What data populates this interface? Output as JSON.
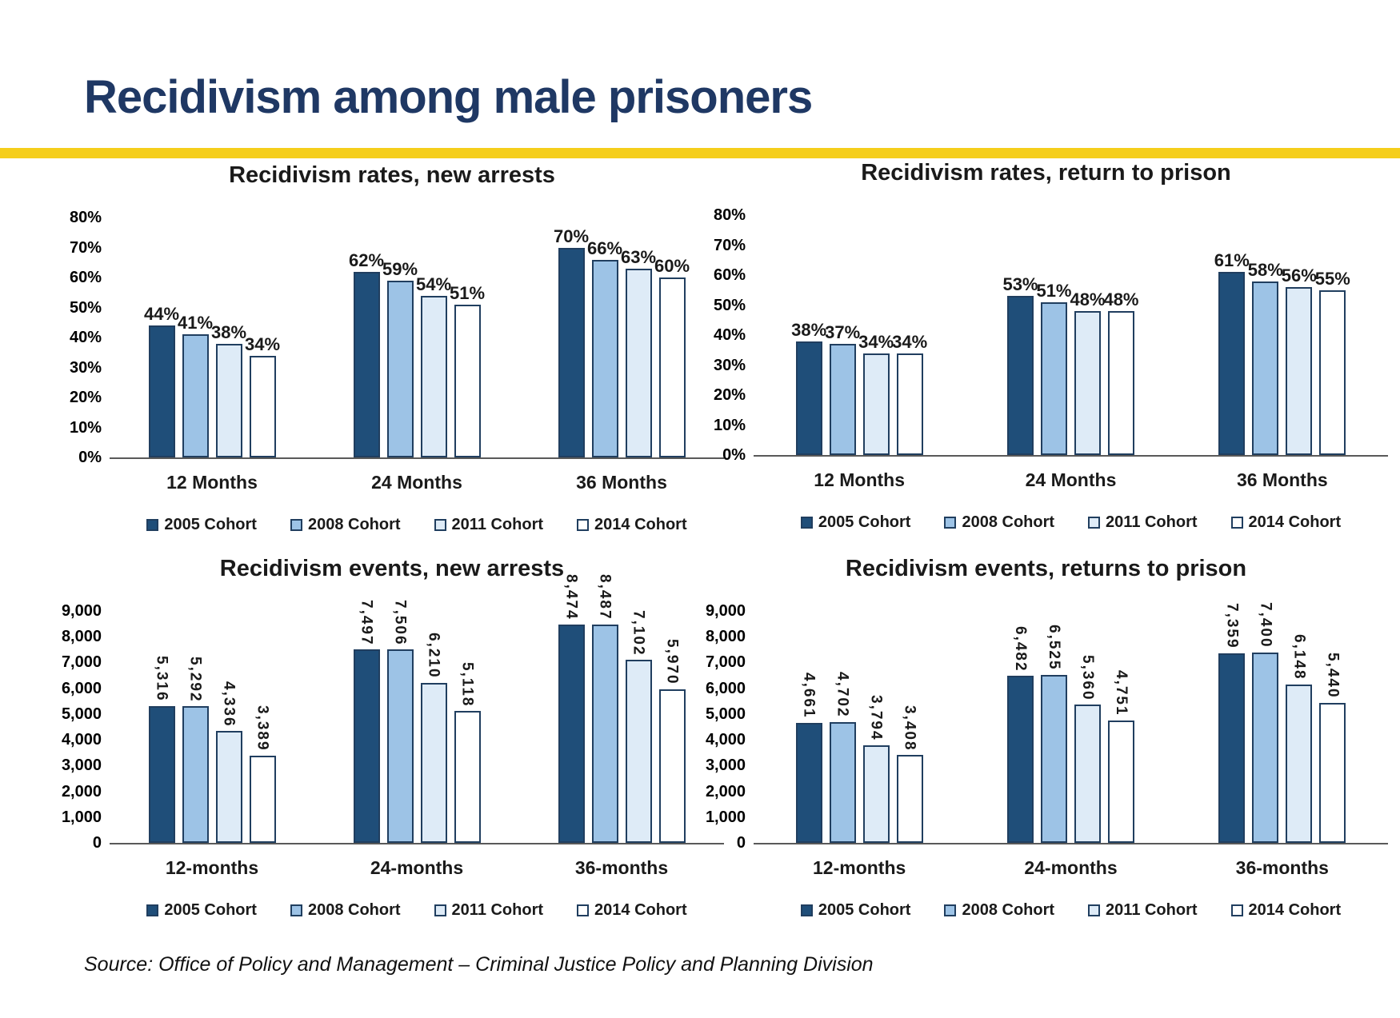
{
  "page": {
    "title": "Recidivism among male prisoners",
    "source": "Source: Office of Policy and Management – Criminal Justice Policy and Planning Division"
  },
  "style": {
    "accent_yellow": "#F5CE1B",
    "title_color": "#1F3864",
    "series_colors": [
      "#1F4E79",
      "#9DC3E6",
      "#DEEBF7",
      "#FFFFFF"
    ],
    "bar_border": "#203E5F",
    "axis_color": "#595959"
  },
  "legend_labels": [
    "2005 Cohort",
    "2008 Cohort",
    "2011 Cohort",
    "2014 Cohort"
  ],
  "chart_data": [
    {
      "id": "rates-new-arrests",
      "type": "bar",
      "title": "Recidivism rates, new arrests",
      "categories": [
        "12 Months",
        "24 Months",
        "36 Months"
      ],
      "ylim": [
        0,
        80
      ],
      "yticks": [
        "0%",
        "10%",
        "20%",
        "30%",
        "40%",
        "50%",
        "60%",
        "70%",
        "80%"
      ],
      "grid": false,
      "legend_position": "bottom",
      "label_rotation": 0,
      "series": [
        {
          "name": "2005 Cohort",
          "values": [
            44,
            62,
            70
          ],
          "labels": [
            "44%",
            "62%",
            "70%"
          ]
        },
        {
          "name": "2008 Cohort",
          "values": [
            41,
            59,
            66
          ],
          "labels": [
            "41%",
            "59%",
            "66%"
          ]
        },
        {
          "name": "2011 Cohort",
          "values": [
            38,
            54,
            63
          ],
          "labels": [
            "38%",
            "54%",
            "63%"
          ]
        },
        {
          "name": "2014 Cohort",
          "values": [
            34,
            51,
            60
          ],
          "labels": [
            "34%",
            "51%",
            "60%"
          ]
        }
      ]
    },
    {
      "id": "rates-return-to-prison",
      "type": "bar",
      "title": "Recidivism rates, return to prison",
      "categories": [
        "12 Months",
        "24 Months",
        "36 Months"
      ],
      "ylim": [
        0,
        80
      ],
      "yticks": [
        "0%",
        "10%",
        "20%",
        "30%",
        "40%",
        "50%",
        "60%",
        "70%",
        "80%"
      ],
      "grid": false,
      "legend_position": "bottom",
      "label_rotation": 0,
      "series": [
        {
          "name": "2005 Cohort",
          "values": [
            38,
            53,
            61
          ],
          "labels": [
            "38%",
            "53%",
            "61%"
          ]
        },
        {
          "name": "2008 Cohort",
          "values": [
            37,
            51,
            58
          ],
          "labels": [
            "37%",
            "51%",
            "58%"
          ]
        },
        {
          "name": "2011 Cohort",
          "values": [
            34,
            48,
            56
          ],
          "labels": [
            "34%",
            "48%",
            "56%"
          ]
        },
        {
          "name": "2014 Cohort",
          "values": [
            34,
            48,
            55
          ],
          "labels": [
            "34%",
            "48%",
            "55%"
          ]
        }
      ]
    },
    {
      "id": "events-new-arrests",
      "type": "bar",
      "title": "Recidivism events, new arrests",
      "categories": [
        "12-months",
        "24-months",
        "36-months"
      ],
      "ylim": [
        0,
        9000
      ],
      "yticks": [
        "0",
        "1,000",
        "2,000",
        "3,000",
        "4,000",
        "5,000",
        "6,000",
        "7,000",
        "8,000",
        "9,000"
      ],
      "grid": false,
      "legend_position": "bottom",
      "label_rotation": 90,
      "series": [
        {
          "name": "2005 Cohort",
          "values": [
            5316,
            7497,
            8474
          ],
          "labels": [
            "5,316",
            "7,497",
            "8,474"
          ]
        },
        {
          "name": "2008 Cohort",
          "values": [
            5292,
            7506,
            8487
          ],
          "labels": [
            "5,292",
            "7,506",
            "8,487"
          ]
        },
        {
          "name": "2011 Cohort",
          "values": [
            4336,
            6210,
            7102
          ],
          "labels": [
            "4,336",
            "6,210",
            "7,102"
          ]
        },
        {
          "name": "2014 Cohort",
          "values": [
            3389,
            5118,
            5970
          ],
          "labels": [
            "3,389",
            "5,118",
            "5,970"
          ]
        }
      ]
    },
    {
      "id": "events-returns-to-prison",
      "type": "bar",
      "title": "Recidivism events, returns to prison",
      "categories": [
        "12-months",
        "24-months",
        "36-months"
      ],
      "ylim": [
        0,
        9000
      ],
      "yticks": [
        "0",
        "1,000",
        "2,000",
        "3,000",
        "4,000",
        "5,000",
        "6,000",
        "7,000",
        "8,000",
        "9,000"
      ],
      "grid": false,
      "legend_position": "bottom",
      "label_rotation": 90,
      "series": [
        {
          "name": "2005 Cohort",
          "values": [
            4661,
            6482,
            7359
          ],
          "labels": [
            "4,661",
            "6,482",
            "7,359"
          ]
        },
        {
          "name": "2008 Cohort",
          "values": [
            4702,
            6525,
            7400
          ],
          "labels": [
            "4,702",
            "6,525",
            "7,400"
          ]
        },
        {
          "name": "2011 Cohort",
          "values": [
            3794,
            5360,
            6148
          ],
          "labels": [
            "3,794",
            "5,360",
            "6,148"
          ]
        },
        {
          "name": "2014 Cohort",
          "values": [
            3408,
            4751,
            5440
          ],
          "labels": [
            "3,408",
            "4,751",
            "5,440"
          ]
        }
      ]
    }
  ]
}
